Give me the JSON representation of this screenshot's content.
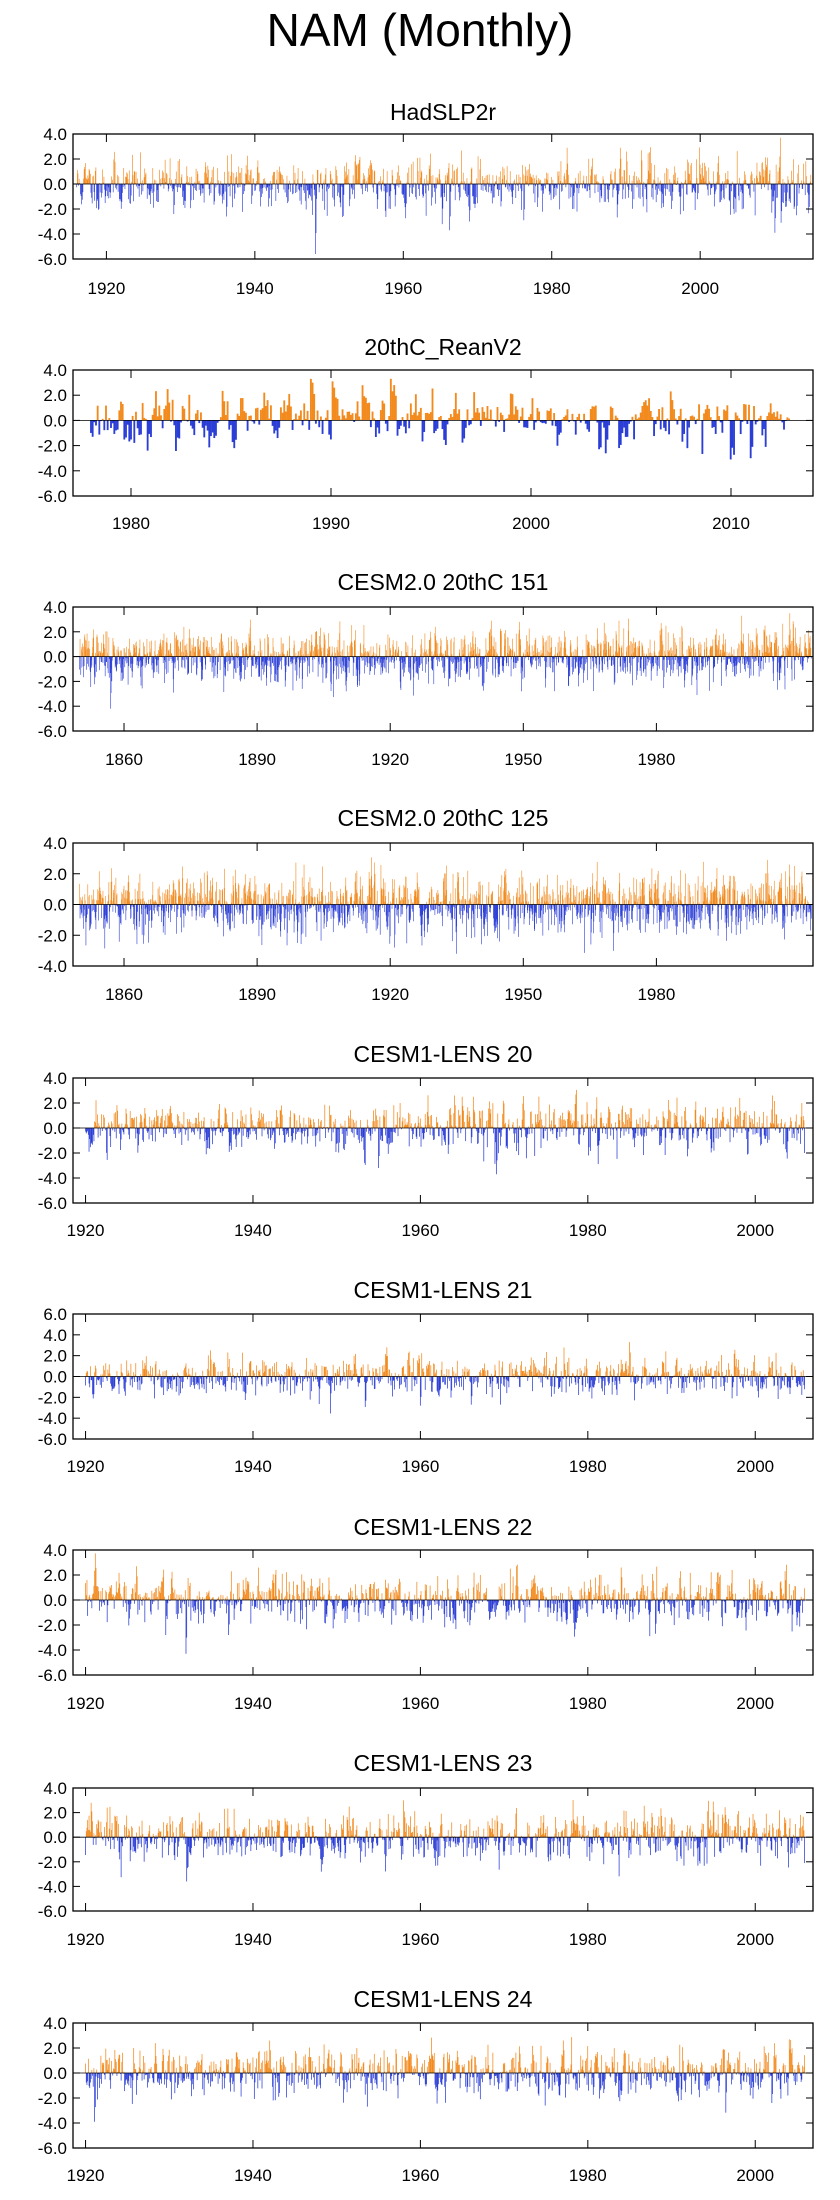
{
  "title": "NAM (Monthly)",
  "colors": {
    "positive": "#f28a1e",
    "negative": "#2b3ed6",
    "axis": "#000000",
    "background": "#ffffff"
  },
  "chart_data": [
    {
      "type": "bar",
      "title": "HadSLP2r",
      "xlabel": "",
      "ylabel": "",
      "xlim": [
        1915.5,
        2015.2
      ],
      "ylim": [
        -6,
        4
      ],
      "yticks": [
        4,
        2,
        0,
        -2,
        -4,
        -6
      ],
      "ytick_labels": [
        "4.0",
        "2.0",
        "0.0",
        "-2.0",
        "-4.0",
        "-6.0"
      ],
      "xticks": [
        1920,
        1940,
        1960,
        1980,
        2000
      ],
      "xtick_labels": [
        "1920",
        "1940",
        "1960",
        "1980",
        "2000"
      ],
      "series": {
        "x_start": 1916.0,
        "x_end": 2014.9,
        "count": 1188,
        "amp": 0.95,
        "seed": 11,
        "events": [
          {
            "x": 1948.2,
            "value": -5.6
          },
          {
            "x": 1966.2,
            "value": -3.7
          },
          {
            "x": 1968.9,
            "value": -3.0
          },
          {
            "x": 1989.2,
            "value": 2.9
          },
          {
            "x": 1990.1,
            "value": 2.6
          },
          {
            "x": 1992.1,
            "value": 2.7
          },
          {
            "x": 2010.1,
            "value": -3.9
          },
          {
            "x": 2010.9,
            "value": -3.1
          },
          {
            "x": 2013.0,
            "value": -2.5
          },
          {
            "x": 1976.2,
            "value": -2.9
          },
          {
            "x": 1929.1,
            "value": -2.4
          },
          {
            "x": 1936.2,
            "value": -2.6
          }
        ]
      }
    },
    {
      "type": "bar",
      "title": "20thC_ReanV2",
      "xlabel": "",
      "ylabel": "",
      "xlim": [
        1977.1,
        2014.1
      ],
      "ylim": [
        -6,
        4
      ],
      "yticks": [
        4,
        2,
        0,
        -2,
        -4,
        -6
      ],
      "ytick_labels": [
        "4.0",
        "2.0",
        "0.0",
        "-2.0",
        "-4.0",
        "-6.0"
      ],
      "xticks": [
        1980,
        1990,
        2000,
        2010
      ],
      "xtick_labels": [
        "1980",
        "1990",
        "2000",
        "2010"
      ],
      "series": {
        "x_start": 1978.0,
        "x_end": 2012.9,
        "count": 420,
        "amp": 0.9,
        "seed": 23,
        "events": [
          {
            "x": 1989.0,
            "value": 3.3
          },
          {
            "x": 1989.1,
            "value": 3.0
          },
          {
            "x": 1990.1,
            "value": 3.1
          },
          {
            "x": 1990.2,
            "value": 2.6
          },
          {
            "x": 1993.0,
            "value": 3.3
          },
          {
            "x": 1993.2,
            "value": 2.8
          },
          {
            "x": 2010.1,
            "value": -3.9
          },
          {
            "x": 2010.0,
            "value": -3.1
          },
          {
            "x": 2011.0,
            "value": -3.0
          },
          {
            "x": 1985.2,
            "value": -2.2
          },
          {
            "x": 2007.0,
            "value": 2.3
          }
        ]
      }
    },
    {
      "type": "bar",
      "title": "CESM2.0 20thC 151",
      "xlabel": "",
      "ylabel": "",
      "xlim": [
        1848.5,
        2015.3
      ],
      "ylim": [
        -6,
        4
      ],
      "yticks": [
        4,
        2,
        0,
        -2,
        -4,
        -6
      ],
      "ytick_labels": [
        "4.0",
        "2.0",
        "0.0",
        "-2.0",
        "-4.0",
        "-6.0"
      ],
      "xticks": [
        1860,
        1890,
        1920,
        1950,
        1980
      ],
      "xtick_labels": [
        "1860",
        "1890",
        "1920",
        "1950",
        "1980"
      ],
      "series": {
        "x_start": 1850.0,
        "x_end": 2014.9,
        "count": 1980,
        "amp": 0.95,
        "seed": 37,
        "events": [
          {
            "x": 1857.0,
            "value": -4.2
          },
          {
            "x": 1900.2,
            "value": -2.6
          },
          {
            "x": 1910.1,
            "value": -2.8
          },
          {
            "x": 1930.2,
            "value": 2.4
          },
          {
            "x": 1955.0,
            "value": -2.5
          },
          {
            "x": 1988.0,
            "value": -2.3
          }
        ]
      }
    },
    {
      "type": "bar",
      "title": "CESM2.0 20thC 125",
      "xlabel": "",
      "ylabel": "",
      "xlim": [
        1848.5,
        2015.3
      ],
      "ylim": [
        -4,
        4
      ],
      "yticks": [
        4,
        2,
        0,
        -2,
        -4
      ],
      "ytick_labels": [
        "4.0",
        "2.0",
        "0.0",
        "-2.0",
        "-4.0"
      ],
      "xticks": [
        1860,
        1890,
        1920,
        1950,
        1980
      ],
      "xtick_labels": [
        "1860",
        "1890",
        "1920",
        "1950",
        "1980"
      ],
      "series": {
        "x_start": 1850.0,
        "x_end": 2014.9,
        "count": 1980,
        "amp": 0.95,
        "seed": 53,
        "events": [
          {
            "x": 1899.1,
            "value": -2.5
          },
          {
            "x": 1921.0,
            "value": -2.8
          },
          {
            "x": 1965.2,
            "value": -2.6
          },
          {
            "x": 2005.1,
            "value": 2.9
          },
          {
            "x": 2010.0,
            "value": 2.6
          }
        ]
      }
    },
    {
      "type": "bar",
      "title": "CESM1-LENS 20",
      "xlabel": "",
      "ylabel": "",
      "xlim": [
        1918.5,
        2006.9
      ],
      "ylim": [
        -6,
        4
      ],
      "yticks": [
        4,
        2,
        0,
        -2,
        -4,
        -6
      ],
      "ytick_labels": [
        "4.0",
        "2.0",
        "0.0",
        "-2.0",
        "-4.0",
        "-6.0"
      ],
      "xticks": [
        1920,
        1940,
        1960,
        1980,
        2000
      ],
      "xtick_labels": [
        "1920",
        "1940",
        "1960",
        "1980",
        "2000"
      ],
      "series": {
        "x_start": 1920.0,
        "x_end": 2005.9,
        "count": 1032,
        "amp": 0.9,
        "seed": 71,
        "events": [
          {
            "x": 1955.0,
            "value": -3.2
          },
          {
            "x": 1964.1,
            "value": 2.6
          },
          {
            "x": 1965.0,
            "value": 2.5
          },
          {
            "x": 1969.1,
            "value": -3.7
          },
          {
            "x": 1980.1,
            "value": -2.2
          },
          {
            "x": 2006.0,
            "value": -2.0
          }
        ]
      }
    },
    {
      "type": "bar",
      "title": "CESM1-LENS 21",
      "xlabel": "",
      "ylabel": "",
      "xlim": [
        1918.5,
        2006.9
      ],
      "ylim": [
        -6,
        6
      ],
      "yticks": [
        6,
        4,
        2,
        0,
        -2,
        -4,
        -6
      ],
      "ytick_labels": [
        "6.0",
        "4.0",
        "2.0",
        "0.0",
        "-2.0",
        "-4.0",
        "-6.0"
      ],
      "xticks": [
        1920,
        1940,
        1960,
        1980,
        2000
      ],
      "xtick_labels": [
        "1920",
        "1940",
        "1960",
        "1980",
        "2000"
      ],
      "series": {
        "x_start": 1920.0,
        "x_end": 2005.9,
        "count": 1032,
        "amp": 0.9,
        "seed": 89,
        "events": [
          {
            "x": 1956.0,
            "value": 2.8
          },
          {
            "x": 1960.1,
            "value": 3.2
          },
          {
            "x": 1985.0,
            "value": 3.3
          },
          {
            "x": 1960.0,
            "value": -2.8
          },
          {
            "x": 1966.1,
            "value": -2.7
          }
        ]
      }
    },
    {
      "type": "bar",
      "title": "CESM1-LENS 22",
      "xlabel": "",
      "ylabel": "",
      "xlim": [
        1918.5,
        2006.9
      ],
      "ylim": [
        -6,
        4
      ],
      "yticks": [
        4,
        2,
        0,
        -2,
        -4,
        -6
      ],
      "ytick_labels": [
        "4.0",
        "2.0",
        "0.0",
        "-2.0",
        "-4.0",
        "-6.0"
      ],
      "xticks": [
        1920,
        1940,
        1960,
        1980,
        2000
      ],
      "xtick_labels": [
        "1920",
        "1940",
        "1960",
        "1980",
        "2000"
      ],
      "series": {
        "x_start": 1920.0,
        "x_end": 2005.9,
        "count": 1032,
        "amp": 0.95,
        "seed": 97,
        "events": [
          {
            "x": 1932.0,
            "value": -4.3
          },
          {
            "x": 1937.1,
            "value": -2.8
          },
          {
            "x": 1984.0,
            "value": 2.6
          },
          {
            "x": 1988.1,
            "value": -2.7
          },
          {
            "x": 1926.1,
            "value": 2.7
          }
        ]
      }
    },
    {
      "type": "bar",
      "title": "CESM1-LENS 23",
      "xlabel": "",
      "ylabel": "",
      "xlim": [
        1918.5,
        2006.9
      ],
      "ylim": [
        -6,
        4
      ],
      "yticks": [
        4,
        2,
        0,
        -2,
        -4,
        -6
      ],
      "ytick_labels": [
        "4.0",
        "2.0",
        "0.0",
        "-2.0",
        "-4.0",
        "-6.0"
      ],
      "xticks": [
        1920,
        1940,
        1960,
        1980,
        2000
      ],
      "xtick_labels": [
        "1920",
        "1940",
        "1960",
        "1980",
        "2000"
      ],
      "series": {
        "x_start": 1920.0,
        "x_end": 2005.9,
        "count": 1032,
        "amp": 0.92,
        "seed": 113,
        "events": [
          {
            "x": 1932.1,
            "value": -3.6
          },
          {
            "x": 1958.0,
            "value": 3.0
          },
          {
            "x": 1962.1,
            "value": -2.3
          },
          {
            "x": 1995.0,
            "value": 2.9
          },
          {
            "x": 2006.0,
            "value": -2.1
          }
        ]
      }
    },
    {
      "type": "bar",
      "title": "CESM1-LENS 24",
      "xlabel": "",
      "ylabel": "",
      "xlim": [
        1918.5,
        2006.9
      ],
      "ylim": [
        -6,
        4
      ],
      "yticks": [
        4,
        2,
        0,
        -2,
        -4,
        -6
      ],
      "ytick_labels": [
        "4.0",
        "2.0",
        "0.0",
        "-2.0",
        "-4.0",
        "-6.0"
      ],
      "xticks": [
        1920,
        1940,
        1960,
        1980,
        2000
      ],
      "xtick_labels": [
        "1920",
        "1940",
        "1960",
        "1980",
        "2000"
      ],
      "series": {
        "x_start": 1920.0,
        "x_end": 2005.9,
        "count": 1032,
        "amp": 0.9,
        "seed": 131,
        "events": [
          {
            "x": 1921.1,
            "value": -3.9
          },
          {
            "x": 1942.0,
            "value": 2.6
          },
          {
            "x": 1977.1,
            "value": 2.6
          },
          {
            "x": 2002.0,
            "value": -2.4
          },
          {
            "x": 2004.1,
            "value": 2.7
          }
        ]
      }
    }
  ]
}
